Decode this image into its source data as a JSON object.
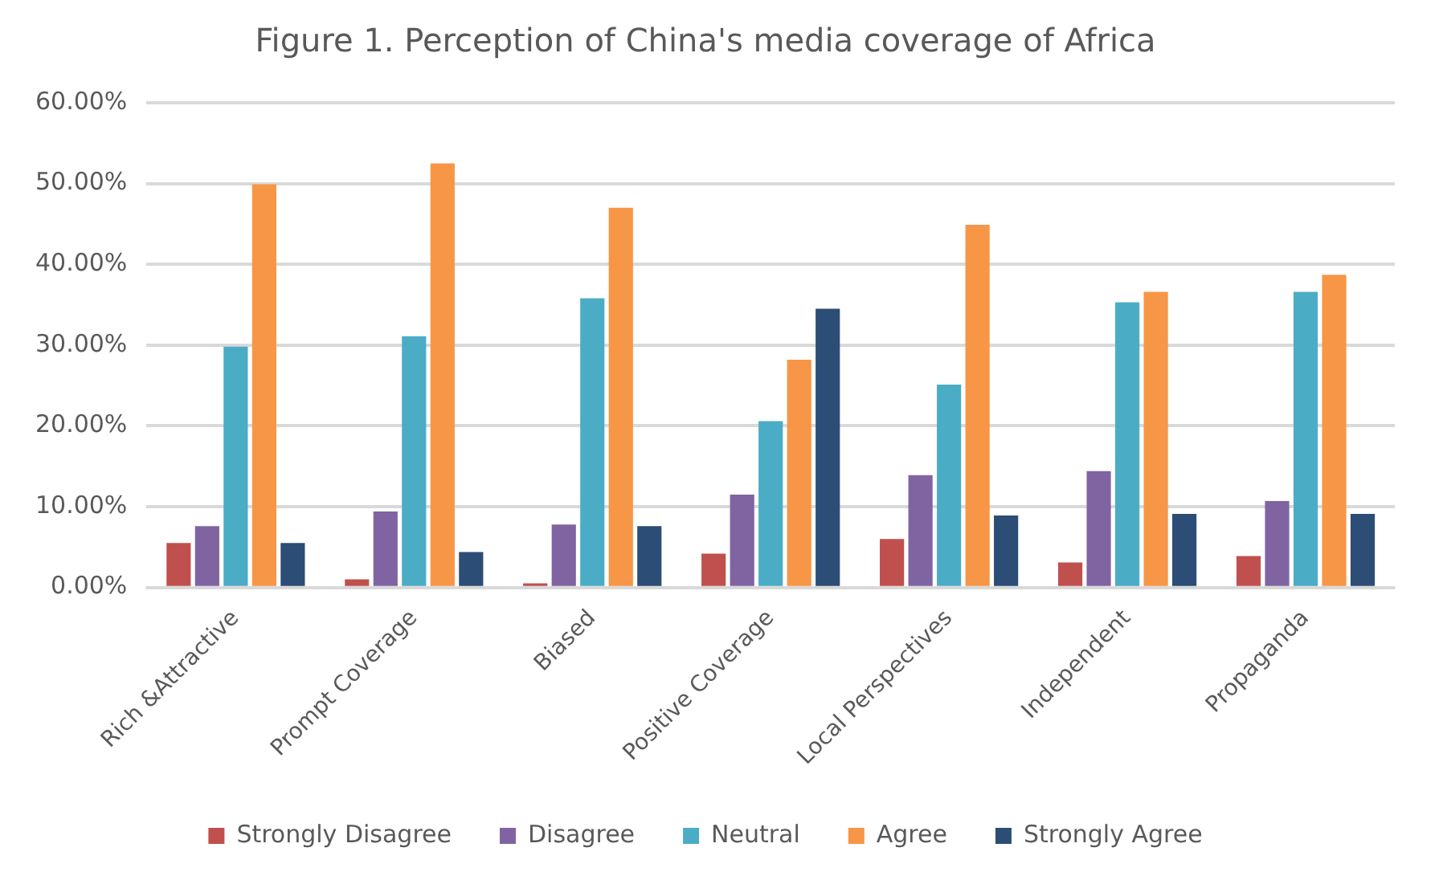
{
  "chart_data": {
    "type": "bar",
    "title": "Figure 1. Perception of China's media coverage of Africa",
    "categories": [
      "Rich &Attractive",
      "Prompt Coverage",
      "Biased",
      "Positive Coverage",
      "Local Perspectives",
      "Independent",
      "Propaganda"
    ],
    "series": [
      {
        "name": "Strongly Disagree",
        "color": "#c0504d",
        "values": [
          5.5,
          1.0,
          0.5,
          4.2,
          6.0,
          3.1,
          3.9
        ]
      },
      {
        "name": "Disagree",
        "color": "#8064a2",
        "values": [
          7.6,
          9.4,
          7.8,
          11.5,
          13.9,
          14.4,
          10.7
        ]
      },
      {
        "name": "Neutral",
        "color": "#4bacc6",
        "values": [
          29.8,
          31.1,
          35.8,
          20.6,
          25.1,
          35.3,
          36.6
        ]
      },
      {
        "name": "Agree",
        "color": "#f79646",
        "values": [
          49.9,
          52.5,
          47.0,
          28.2,
          44.9,
          36.6,
          38.7
        ]
      },
      {
        "name": "Strongly Agree",
        "color": "#2c4d75",
        "values": [
          5.5,
          4.4,
          7.6,
          34.5,
          8.9,
          9.1,
          9.1
        ]
      }
    ],
    "ylim": [
      0,
      60
    ],
    "yticks": [
      {
        "value": 0,
        "label": "0.00%"
      },
      {
        "value": 10,
        "label": "10.00%"
      },
      {
        "value": 20,
        "label": "20.00%"
      },
      {
        "value": 30,
        "label": "30.00%"
      },
      {
        "value": 40,
        "label": "40.00%"
      },
      {
        "value": 50,
        "label": "50.00%"
      },
      {
        "value": 60,
        "label": "60.00%"
      }
    ],
    "grid": "y",
    "legend": "bottom"
  }
}
